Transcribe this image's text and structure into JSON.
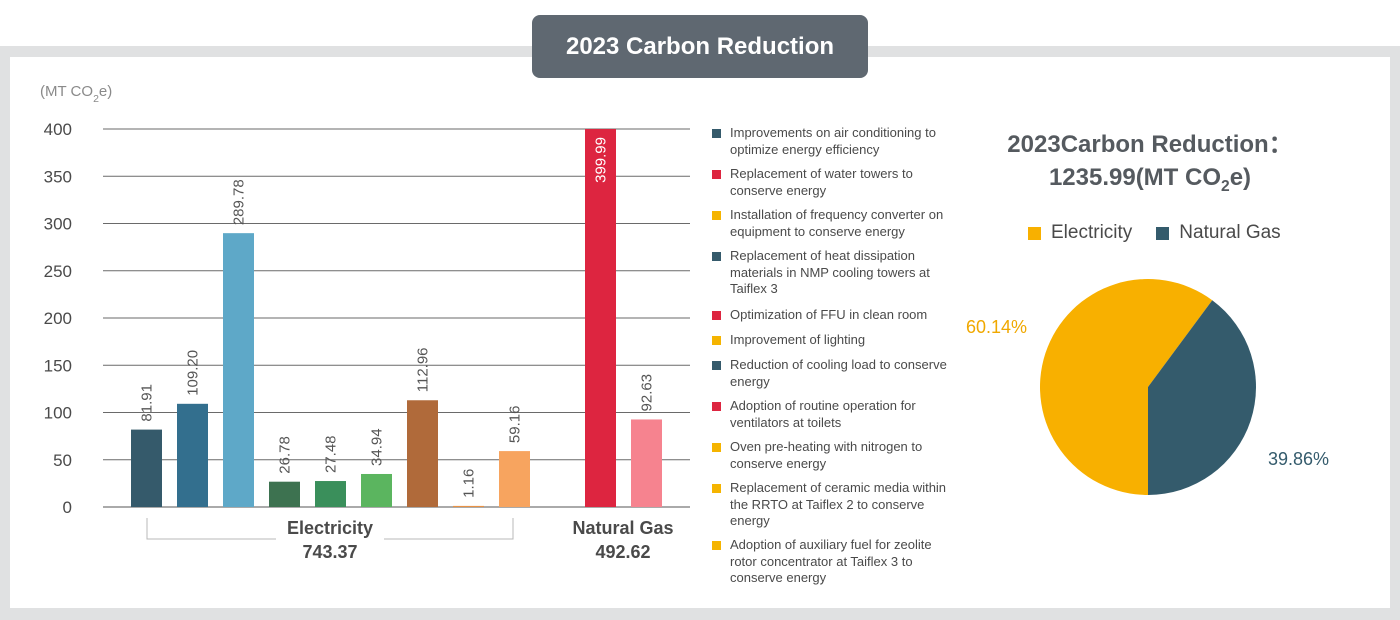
{
  "header": {
    "title": "2023 Carbon Reduction"
  },
  "chart_data": [
    {
      "type": "bar",
      "unit_label": "(MT CO2e)",
      "ylim": [
        0,
        400
      ],
      "yticks": [
        "0",
        "50",
        "100",
        "150",
        "200",
        "250",
        "300",
        "350",
        "400"
      ],
      "grid": true,
      "bars": [
        {
          "value": 81.91,
          "label": "81.91",
          "color": "#355a6b"
        },
        {
          "value": 109.2,
          "label": "109.20",
          "color": "#336f8e"
        },
        {
          "value": 289.78,
          "label": "289.78",
          "color": "#5ea8c8"
        },
        {
          "value": 26.78,
          "label": "26.78",
          "color": "#3d7250"
        },
        {
          "value": 27.48,
          "label": "27.48",
          "color": "#3a8f5b"
        },
        {
          "value": 34.94,
          "label": "34.94",
          "color": "#5bb55f"
        },
        {
          "value": 112.96,
          "label": "112.96",
          "color": "#b06a3a"
        },
        {
          "value": 1.16,
          "label": "1.16",
          "color": "#e89245"
        },
        {
          "value": 59.16,
          "label": "59.16",
          "color": "#f7a45f"
        },
        {
          "value": 399.99,
          "label": "399.99",
          "color": "#dd2540"
        },
        {
          "value": 92.63,
          "label": "92.63",
          "color": "#f6838f"
        }
      ],
      "groups": [
        {
          "name": "Electricity",
          "total": "743.37"
        },
        {
          "name": "Natural Gas",
          "total": "492.62"
        }
      ],
      "legend": [
        {
          "label": "Improvements on air conditioning to optimize energy efficiency",
          "color": "#355a6b"
        },
        {
          "label": "Replacement of water towers to conserve energy",
          "color": "#dd2540"
        },
        {
          "label": "Installation of frequency converter on equipment to conserve energy",
          "color": "#f5b400"
        },
        {
          "label": "Replacement of heat dissipation materials in NMP cooling towers at Taiflex 3",
          "color": "#355a6b"
        },
        {
          "label": "Optimization of FFU in clean room",
          "color": "#dd2540"
        },
        {
          "label": "Improvement of lighting",
          "color": "#f5b400"
        },
        {
          "label": "Reduction of cooling load to conserve energy",
          "color": "#355a6b"
        },
        {
          "label": "Adoption of routine operation for ventilators at toilets",
          "color": "#dd2540"
        },
        {
          "label": "Oven pre-heating with nitrogen to conserve energy",
          "color": "#f5b400"
        },
        {
          "label": "Replacement of ceramic media within the RRTO at Taiflex 2 to conserve energy",
          "color": "#f5b400"
        },
        {
          "label": "Adoption of auxiliary fuel for zeolite rotor concentrator at Taiflex 3 to conserve energy",
          "color": "#f5b400"
        }
      ]
    },
    {
      "type": "pie",
      "title_line1": "2023Carbon Reduction：",
      "title_line2": "1235.99(MT CO2e)",
      "slices": [
        {
          "name": "Electricity",
          "value": 60.14,
          "label": "60.14%",
          "color": "#f8b000"
        },
        {
          "name": "Natural Gas",
          "value": 39.86,
          "label": "39.86%",
          "color": "#345b6c"
        }
      ]
    }
  ]
}
